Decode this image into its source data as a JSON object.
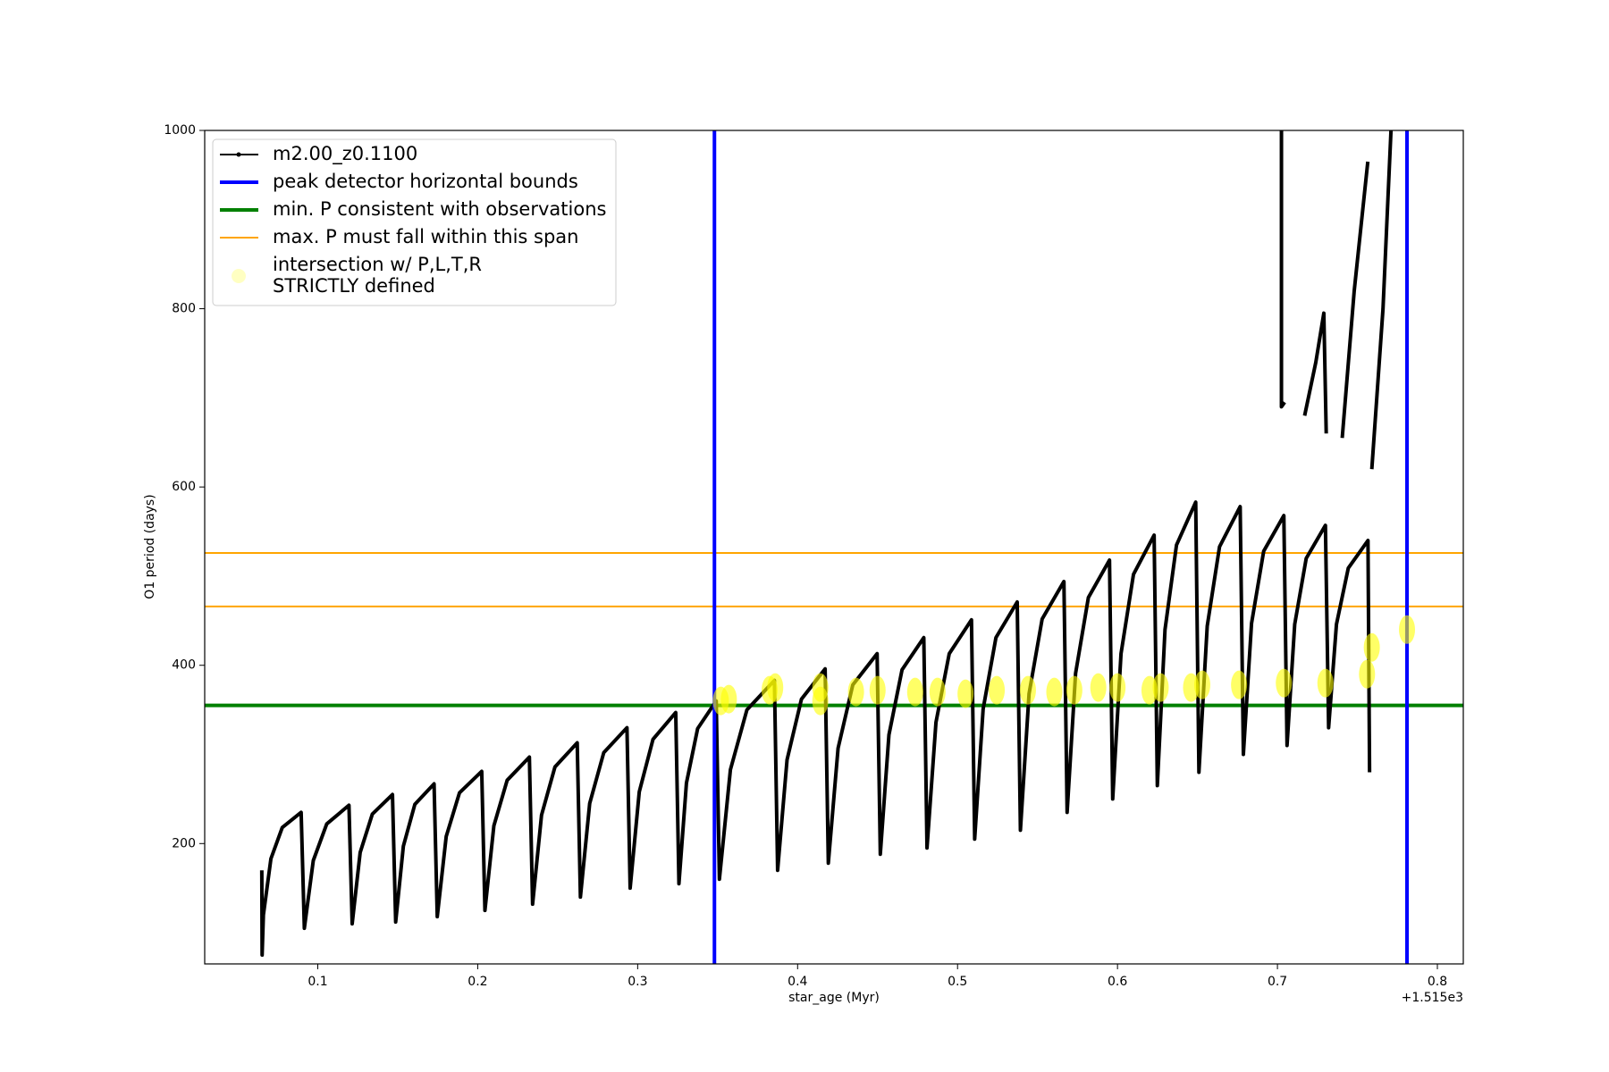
{
  "chart_data": {
    "type": "line",
    "xlabel": "star_age (Myr)",
    "ylabel": "O1 period (days)",
    "x_offset_text": "+1.515e3",
    "xlim": [
      0.0293,
      0.8162
    ],
    "ylim": [
      65,
      1000
    ],
    "xticks": [
      0.1,
      0.2,
      0.3,
      0.4,
      0.5,
      0.6,
      0.7,
      0.8
    ],
    "yticks": [
      200,
      400,
      600,
      800,
      1000
    ],
    "legend": "upper left",
    "series": [
      {
        "type": "line",
        "name": "m2.00_z0.1100",
        "color": "#000000",
        "linewidth": 4,
        "x": [
          0.065,
          0.0652,
          0.066,
          0.0707,
          0.0778,
          0.0896,
          0.0916,
          0.0972,
          0.1056,
          0.1195,
          0.1215,
          0.1265,
          0.1341,
          0.1467,
          0.1487,
          0.1535,
          0.1607,
          0.1727,
          0.1747,
          0.1803,
          0.1886,
          0.2025,
          0.2045,
          0.2101,
          0.2184,
          0.2323,
          0.2343,
          0.2399,
          0.2483,
          0.2622,
          0.2642,
          0.27,
          0.2788,
          0.2933,
          0.2953,
          0.301,
          0.3096,
          0.3238,
          0.3258,
          0.3305,
          0.3375,
          0.3491,
          0.3511,
          0.358,
          0.3683,
          0.3855,
          0.3875,
          0.3934,
          0.4024,
          0.4172,
          0.4192,
          0.4253,
          0.4345,
          0.4497,
          0.4517,
          0.4571,
          0.4653,
          0.4789,
          0.4809,
          0.4865,
          0.4948,
          0.5087,
          0.5107,
          0.516,
          0.524,
          0.5373,
          0.5393,
          0.5447,
          0.5529,
          0.5665,
          0.5685,
          0.5738,
          0.5818,
          0.595,
          0.597,
          0.6022,
          0.61,
          0.6229,
          0.6249,
          0.6297,
          0.6369,
          0.6489,
          0.6509,
          0.6561,
          0.6638,
          0.6767,
          0.6787,
          0.6838,
          0.6914,
          0.704,
          0.706,
          0.7108,
          0.718,
          0.73,
          0.732,
          0.7369,
          0.7443,
          0.7566,
          0.7576,
          0.7,
          0.7025,
          0.7025,
          0.7045,
          0.7,
          0.717,
          0.724,
          0.729,
          0.7305,
          0.7,
          0.7405,
          0.748,
          0.7565,
          0.7,
          0.759,
          0.766,
          0.771
        ],
        "values": [
          170,
          75,
          120,
          183,
          218,
          235,
          105,
          181,
          222,
          243,
          110,
          190,
          233,
          255,
          112,
          197,
          244,
          267,
          118,
          208,
          257,
          281,
          125,
          220,
          271,
          297,
          132,
          232,
          286,
          313,
          140,
          245,
          302,
          330,
          150,
          258,
          317,
          347,
          155,
          268,
          329,
          360,
          160,
          283,
          350,
          383,
          170,
          294,
          362,
          396,
          178,
          307,
          378,
          413,
          188,
          322,
          395,
          431,
          195,
          336,
          413,
          451,
          205,
          351,
          431,
          471,
          215,
          368,
          452,
          494,
          235,
          391,
          476,
          518,
          250,
          413,
          502,
          546,
          265,
          440,
          535,
          583,
          280,
          444,
          533,
          578,
          300,
          447,
          528,
          568,
          310,
          446,
          520,
          557,
          330,
          446,
          509,
          540,
          280,
          null,
          1000,
          690,
          695,
          null,
          680,
          740,
          795,
          660,
          null,
          655,
          820,
          965,
          null,
          620,
          800,
          1000
        ]
      },
      {
        "type": "vline",
        "name": "peak detector horizontal bounds",
        "color": "#0000ff",
        "linewidth": 4,
        "values": [
          0.348,
          0.781
        ]
      },
      {
        "type": "hline",
        "name": "min. P consistent with observations",
        "color": "#008000",
        "linewidth": 4,
        "values": [
          355
        ]
      },
      {
        "type": "hline",
        "name": "max. P must fall within this span",
        "color": "#ffa500",
        "linewidth": 2,
        "values": [
          466,
          526
        ]
      },
      {
        "type": "scatter",
        "name": "intersection w/ P,L,T,R\nSTRICTLY defined",
        "color": "#ffff00",
        "alpha": 0.6,
        "x": [
          0.352,
          0.357,
          0.3825,
          0.386,
          0.4142,
          0.4142,
          0.4365,
          0.45,
          0.4735,
          0.4875,
          0.505,
          0.5245,
          0.544,
          0.5605,
          0.573,
          0.588,
          0.6,
          0.62,
          0.627,
          0.646,
          0.653,
          0.676,
          0.704,
          0.73,
          0.756,
          0.759,
          0.781
        ],
        "values": [
          360,
          362,
          372,
          375,
          375,
          360,
          370,
          372,
          370,
          370,
          368,
          372,
          372,
          370,
          372,
          375,
          375,
          372,
          375,
          375,
          378,
          378,
          380,
          380,
          390,
          420,
          440
        ]
      }
    ]
  }
}
